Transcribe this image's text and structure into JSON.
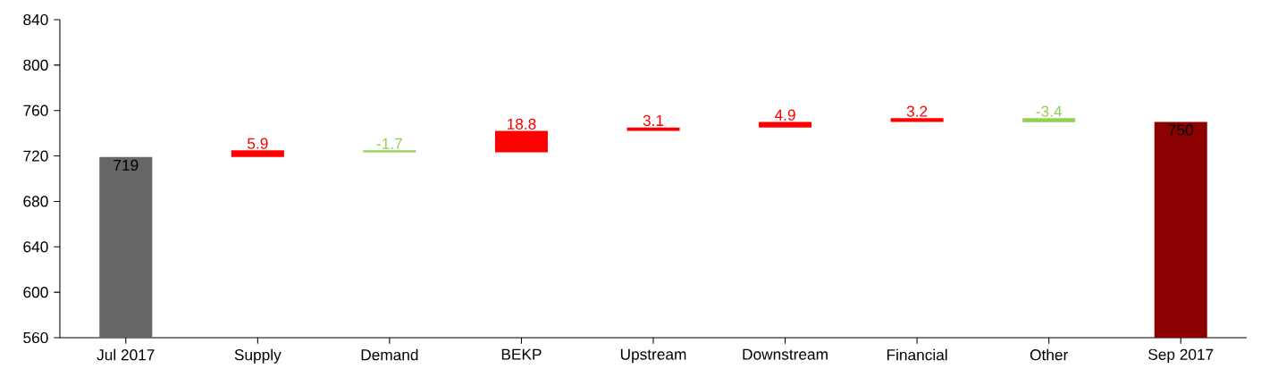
{
  "chart_data": {
    "type": "bar",
    "categories": [
      "Jul 2017",
      "Supply",
      "Demand",
      "BEKP",
      "Upstream",
      "Downstream",
      "Financial",
      "Other",
      "Sep 2017"
    ],
    "values": [
      719,
      5.9,
      -1.7,
      18.8,
      3.1,
      4.9,
      3.2,
      -3.4,
      750
    ],
    "base": [
      null,
      719,
      724.9,
      723.2,
      742,
      745.1,
      750,
      753.2,
      null
    ],
    "colors": [
      "#666666",
      "#ff0000",
      "#92d050",
      "#ff0000",
      "#ff0000",
      "#ff0000",
      "#ff0000",
      "#92d050",
      "#8b0000"
    ],
    "ylim": [
      560,
      840
    ],
    "yticks": [
      560,
      600,
      640,
      680,
      720,
      760,
      800,
      840
    ],
    "grid": false,
    "data_labels": true
  }
}
